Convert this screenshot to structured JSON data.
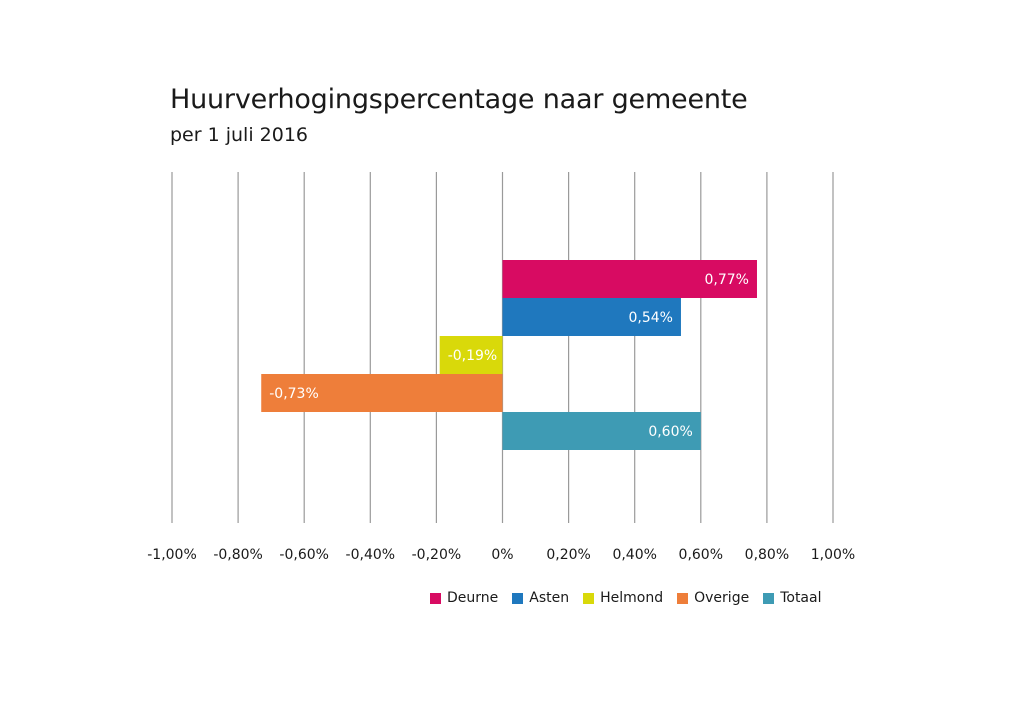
{
  "chart_data": {
    "type": "bar",
    "orientation": "horizontal",
    "title": "Huurverhogingspercentage naar gemeente",
    "subtitle": "per 1 juli 2016",
    "xlim": [
      -1.0,
      1.0
    ],
    "x_ticks": [
      -1.0,
      -0.8,
      -0.6,
      -0.4,
      -0.2,
      0,
      0.2,
      0.4,
      0.6,
      0.8,
      1.0
    ],
    "x_tick_labels": [
      "-1,00%",
      "-0,80%",
      "-0,60%",
      "-0,40%",
      "-0,20%",
      "0%",
      "0,20%",
      "0,40%",
      "0,60%",
      "0,80%",
      "1,00%"
    ],
    "grid": "vertical",
    "legend_position": "bottom-right",
    "series": [
      {
        "name": "Deurne",
        "value": 0.77,
        "label": "0,77%",
        "color": "#D80B62"
      },
      {
        "name": "Asten",
        "value": 0.54,
        "label": "0,54%",
        "color": "#1F78BE"
      },
      {
        "name": "Helmond",
        "value": -0.19,
        "label": "-0,19%",
        "color": "#D9D90A"
      },
      {
        "name": "Overige",
        "value": -0.73,
        "label": "-0,73%",
        "color": "#EE7E3A"
      },
      {
        "name": "Totaal",
        "value": 0.6,
        "label": "0,60%",
        "color": "#3E9BB4"
      }
    ]
  }
}
